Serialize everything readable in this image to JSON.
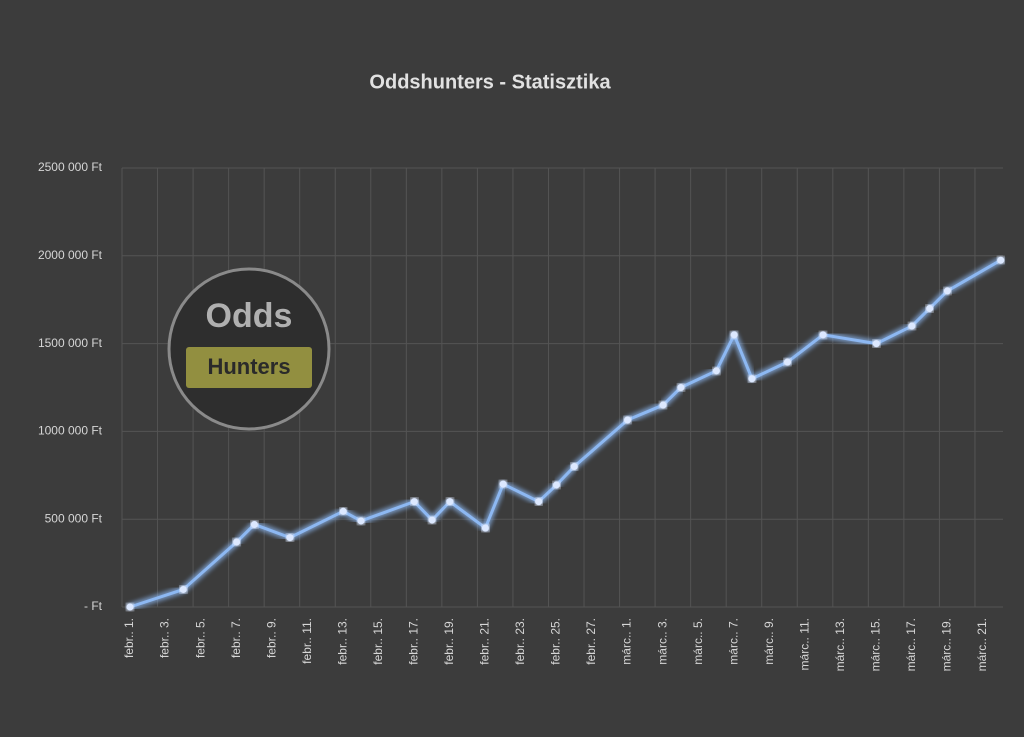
{
  "chart_data": {
    "type": "line",
    "title": "Oddshunters - Statisztika",
    "annotations": [
      "Odds",
      "Hunters"
    ],
    "categories": [
      "febr.. 1.",
      null,
      "febr.. 3.",
      null,
      "febr.. 5.",
      null,
      "febr.. 7.",
      null,
      "febr.. 9.",
      null,
      "febr.. 11.",
      null,
      "febr.. 13.",
      null,
      "febr.. 15.",
      null,
      "febr.. 17.",
      null,
      "febr.. 19.",
      null,
      "febr.. 21.",
      null,
      "febr.. 23.",
      null,
      "febr.. 25.",
      null,
      "febr.. 27.",
      null,
      "márc.. 1.",
      null,
      "márc.. 3.",
      null,
      "márc.. 5.",
      null,
      "márc.. 7.",
      null,
      "márc.. 9.",
      null,
      "márc.. 11.",
      null,
      "márc.. 13.",
      null,
      "márc.. 15.",
      null,
      "márc.. 17.",
      null,
      "márc.. 19.",
      null,
      "márc.. 21.",
      null
    ],
    "values": [
      0,
      null,
      null,
      100000,
      null,
      null,
      370000,
      470000,
      null,
      395000,
      null,
      null,
      545000,
      490000,
      null,
      null,
      600000,
      495000,
      600000,
      null,
      450000,
      700000,
      null,
      600000,
      695000,
      800000,
      null,
      null,
      1065000,
      null,
      1150000,
      1250000,
      null,
      1345000,
      1550000,
      1300000,
      null,
      1395000,
      null,
      1550000,
      null,
      null,
      1500000,
      null,
      1600000,
      1700000,
      1800000,
      null,
      null,
      1975000
    ],
    "color": "#8db8f2",
    "ylim": [
      0,
      2500000
    ],
    "yticks": [
      {
        "value": 0,
        "label": "-   Ft"
      },
      {
        "value": 500000,
        "label": "500 000 Ft"
      },
      {
        "value": 1000000,
        "label": "1000 000 Ft"
      },
      {
        "value": 1500000,
        "label": "1500 000 Ft"
      },
      {
        "value": 2000000,
        "label": "2000 000 Ft"
      },
      {
        "value": 2500000,
        "label": "2500 000 Ft"
      }
    ],
    "grid": true
  }
}
